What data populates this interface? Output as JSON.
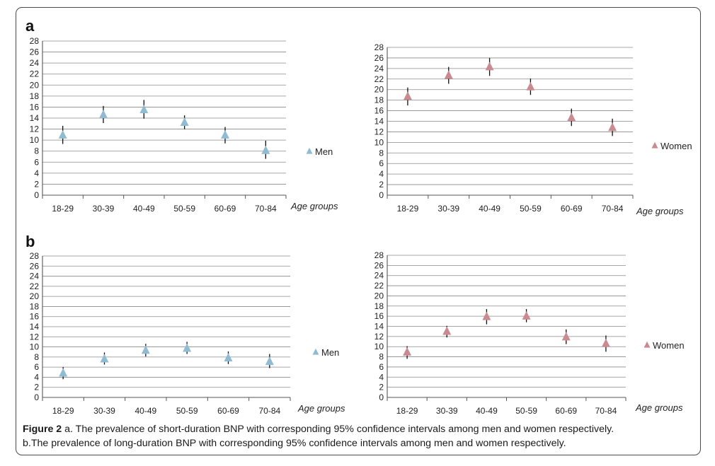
{
  "caption": {
    "lead": "Figure 2",
    "line1": " a. The prevalence of short-duration BNP with corresponding 95% confidence intervals among men and women respectively.",
    "line2": "b.The prevalence of long-duration BNP with corresponding 95% confidence intervals among men and women respectively."
  },
  "panels": [
    {
      "letter": "a"
    },
    {
      "letter": "b"
    }
  ],
  "colors": {
    "men": "#8fbcd0",
    "women": "#c98b91",
    "grid": "#8a8a8a",
    "errorbar": "#111111"
  },
  "chart_data": [
    {
      "type": "scatter",
      "panel": "a",
      "legend": "Men",
      "xlabel": "Age groups",
      "ylabel": "",
      "ylim": [
        0,
        28
      ],
      "yticks": [
        0,
        2,
        4,
        6,
        8,
        10,
        12,
        14,
        16,
        18,
        20,
        22,
        24,
        26,
        28
      ],
      "grid": true,
      "legend_position": "right",
      "categories": [
        "18-29",
        "30-39",
        "40-49",
        "50-59",
        "60-69",
        "70-84"
      ],
      "series": [
        {
          "name": "Men",
          "values": [
            10.9,
            14.6,
            15.5,
            13.2,
            10.9,
            8.1
          ],
          "ci_low": [
            9.3,
            13.1,
            13.9,
            12.0,
            9.4,
            6.6
          ],
          "ci_high": [
            12.6,
            16.2,
            17.3,
            14.5,
            12.4,
            9.9
          ]
        }
      ]
    },
    {
      "type": "scatter",
      "panel": "a",
      "legend": "Women",
      "xlabel": "Age groups",
      "ylabel": "",
      "ylim": [
        0,
        28
      ],
      "yticks": [
        0,
        2,
        4,
        6,
        8,
        10,
        12,
        14,
        16,
        18,
        20,
        22,
        24,
        26,
        28
      ],
      "grid": true,
      "legend_position": "right",
      "categories": [
        "18-29",
        "30-39",
        "40-49",
        "50-59",
        "60-69",
        "70-84"
      ],
      "series": [
        {
          "name": "Women",
          "values": [
            18.7,
            22.7,
            24.3,
            20.5,
            14.7,
            12.8
          ],
          "ci_low": [
            17.0,
            21.1,
            22.6,
            19.0,
            13.1,
            11.2
          ],
          "ci_high": [
            20.4,
            24.3,
            26.0,
            22.1,
            16.4,
            14.5
          ]
        }
      ]
    },
    {
      "type": "scatter",
      "panel": "b",
      "legend": "Men",
      "xlabel": "Age groups",
      "ylabel": "",
      "ylim": [
        0,
        28
      ],
      "yticks": [
        0,
        2,
        4,
        6,
        8,
        10,
        12,
        14,
        16,
        18,
        20,
        22,
        24,
        26,
        28
      ],
      "grid": true,
      "legend_position": "right",
      "categories": [
        "18-29",
        "30-39",
        "40-49",
        "50-59",
        "60-69",
        "70-84"
      ],
      "series": [
        {
          "name": "Men",
          "values": [
            4.8,
            7.6,
            9.3,
            9.7,
            7.8,
            7.1
          ],
          "ci_low": [
            3.6,
            6.5,
            8.1,
            8.6,
            6.6,
            5.8
          ],
          "ci_high": [
            6.0,
            8.9,
            10.6,
            11.0,
            9.1,
            8.6
          ]
        }
      ]
    },
    {
      "type": "scatter",
      "panel": "b",
      "legend": "Women",
      "xlabel": "Age groups",
      "ylabel": "",
      "ylim": [
        0,
        28
      ],
      "yticks": [
        0,
        2,
        4,
        6,
        8,
        10,
        12,
        14,
        16,
        18,
        20,
        22,
        24,
        26,
        28
      ],
      "grid": true,
      "legend_position": "right",
      "categories": [
        "18-29",
        "30-39",
        "40-49",
        "50-59",
        "60-69",
        "70-84"
      ],
      "series": [
        {
          "name": "Women",
          "values": [
            8.9,
            13.0,
            15.9,
            16.0,
            11.9,
            10.6
          ],
          "ci_low": [
            7.6,
            11.8,
            14.4,
            14.8,
            10.5,
            9.0
          ],
          "ci_high": [
            10.1,
            14.1,
            17.4,
            17.4,
            13.4,
            12.2
          ]
        }
      ]
    }
  ]
}
